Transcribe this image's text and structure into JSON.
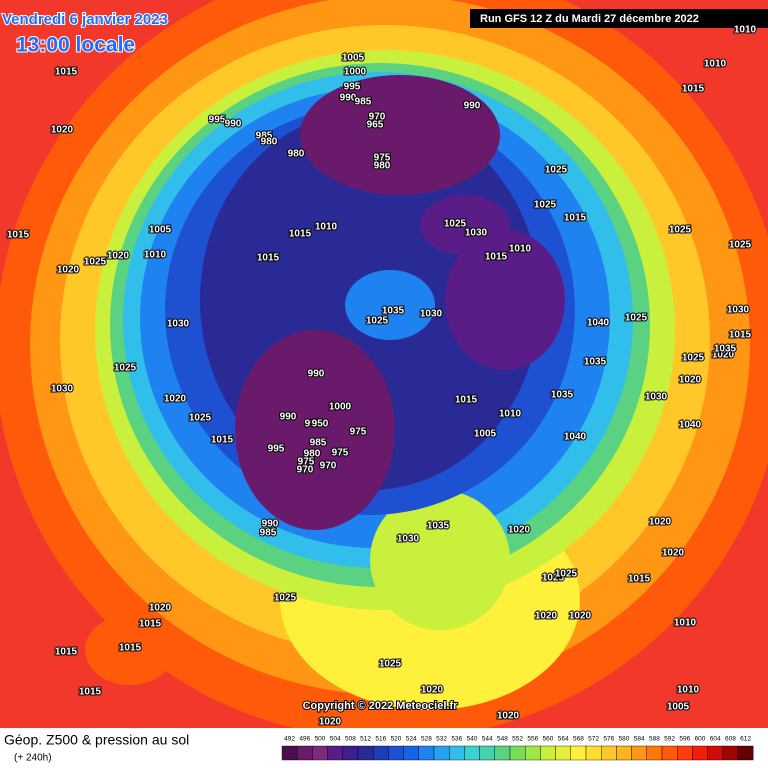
{
  "header": {
    "date": "Vendredi 6 janvier 2023",
    "time": "13:00 locale",
    "run": "Run GFS 12 Z du Mardi 27 décembre 2022"
  },
  "copyright": "Copyright © 2022 Meteociel.fr",
  "legend": {
    "title": "Géop. Z500 & pression au sol",
    "subtitle": "(+ 240h)"
  },
  "scale": {
    "labels": [
      492,
      496,
      500,
      504,
      508,
      512,
      516,
      520,
      524,
      528,
      532,
      536,
      540,
      544,
      548,
      552,
      556,
      560,
      564,
      568,
      572,
      576,
      580,
      584,
      588,
      592,
      596,
      600,
      604,
      608,
      612
    ],
    "colors": [
      "#4b0f4b",
      "#6a1a6a",
      "#7d2a7d",
      "#5a1d87",
      "#3c1e8c",
      "#2a2a96",
      "#1e3cb4",
      "#1e50d2",
      "#1464e6",
      "#1e82f0",
      "#28a0f0",
      "#32beeb",
      "#3cd2d2",
      "#46d2aa",
      "#5ad282",
      "#78dc5a",
      "#a0e646",
      "#c8f03c",
      "#e6f03c",
      "#fff03c",
      "#ffdc32",
      "#ffc828",
      "#ffb41e",
      "#ff9614",
      "#ff780f",
      "#ff5a0a",
      "#ff3c0a",
      "#f01e0a",
      "#d20a0a",
      "#a00505",
      "#640000"
    ]
  },
  "isobar_labels": [
    1015,
    1020,
    1015,
    1020,
    1025,
    1020,
    1010,
    1005,
    1030,
    1030,
    1025,
    1020,
    1025,
    1015,
    1015,
    1015,
    1010,
    1005,
    1000,
    995,
    990,
    985,
    970,
    965,
    975,
    980,
    990,
    995,
    990,
    985,
    980,
    980,
    1025,
    1030,
    1015,
    1010,
    1025,
    1025,
    1015,
    1035,
    1025,
    1030,
    1040,
    1035,
    1025,
    1025,
    1035,
    1015,
    1010,
    1005,
    1040,
    1030,
    1040,
    1020,
    1025,
    1020,
    1015,
    1025,
    1010,
    1010,
    1015,
    990,
    1000,
    990,
    995,
    950,
    975,
    985,
    980,
    975,
    995,
    975,
    970,
    970,
    990,
    985,
    1035,
    1030,
    1020,
    1020,
    1020,
    1025,
    1025,
    1015,
    1020,
    1020,
    1010,
    1025,
    1020,
    1015,
    1015,
    1015,
    1015,
    1025,
    1020,
    1020,
    1020,
    1010,
    1005,
    1030,
    1035
  ]
}
